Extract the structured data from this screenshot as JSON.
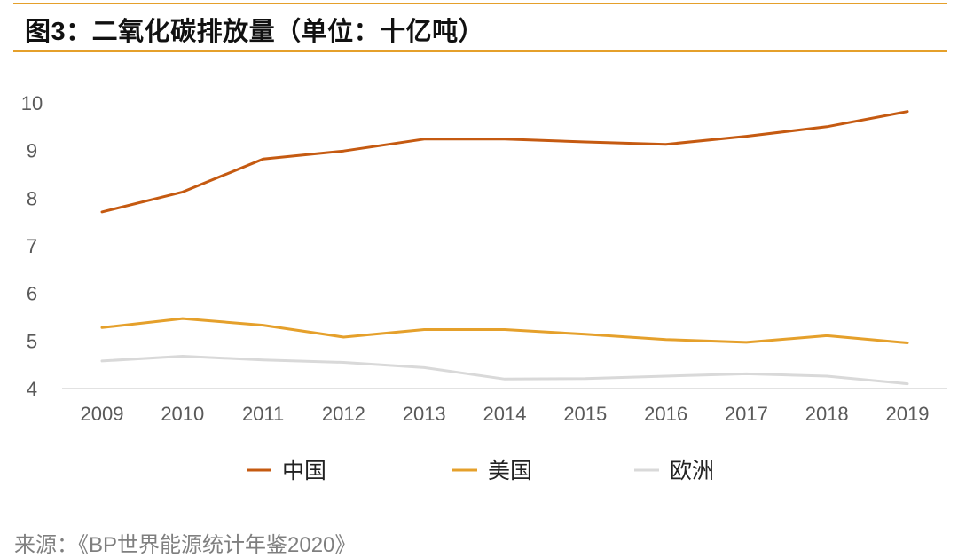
{
  "title": "图3：二氧化碳排放量（单位：十亿吨）",
  "source": "来源：《BP世界能源统计年鉴2020》",
  "chart_data": {
    "type": "line",
    "x": [
      "2009",
      "2010",
      "2011",
      "2012",
      "2013",
      "2014",
      "2015",
      "2016",
      "2017",
      "2018",
      "2019"
    ],
    "ylim": [
      4,
      10
    ],
    "yticks": [
      4,
      5,
      6,
      7,
      8,
      9,
      10
    ],
    "grid": false,
    "legend_position": "bottom",
    "series": [
      {
        "name": "中国",
        "color": "#C55A11",
        "values": [
          7.71,
          8.13,
          8.82,
          8.99,
          9.24,
          9.24,
          9.18,
          9.13,
          9.3,
          9.5,
          9.82
        ]
      },
      {
        "name": "美国",
        "color": "#E5A02B",
        "values": [
          5.28,
          5.47,
          5.33,
          5.08,
          5.24,
          5.24,
          5.14,
          5.03,
          4.97,
          5.11,
          4.96
        ]
      },
      {
        "name": "欧洲",
        "color": "#D9D9D9",
        "values": [
          4.58,
          4.68,
          4.6,
          4.55,
          4.44,
          4.2,
          4.21,
          4.26,
          4.31,
          4.26,
          4.1
        ]
      }
    ]
  }
}
